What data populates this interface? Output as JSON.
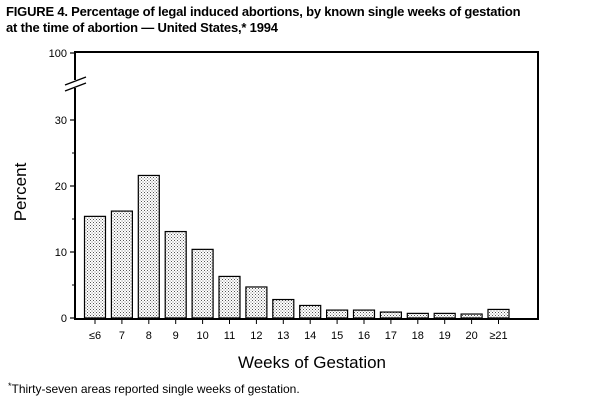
{
  "title_lines": [
    "FIGURE 4. Percentage of legal induced abortions, by known single weeks of gestation",
    "at the time of abortion — United States,* 1994"
  ],
  "footnote": {
    "marker": "*",
    "text": "Thirty-seven areas reported single weeks of gestation."
  },
  "chart_data": {
    "type": "bar",
    "xlabel": "Weeks of Gestation",
    "ylabel": "Percent",
    "categories": [
      "≤6",
      "7",
      "8",
      "9",
      "10",
      "11",
      "12",
      "13",
      "14",
      "15",
      "16",
      "17",
      "18",
      "19",
      "20",
      "≥21"
    ],
    "values": [
      15.4,
      16.2,
      21.6,
      13.1,
      10.4,
      6.3,
      4.7,
      2.8,
      1.9,
      1.2,
      1.2,
      0.9,
      0.7,
      0.7,
      0.6,
      1.3
    ],
    "ylim": [
      0,
      100
    ],
    "axis_break": [
      30,
      100
    ],
    "yticks": [
      "0",
      "10",
      "20",
      "30",
      "100"
    ],
    "grid": false,
    "bar_fill": "dotted"
  }
}
